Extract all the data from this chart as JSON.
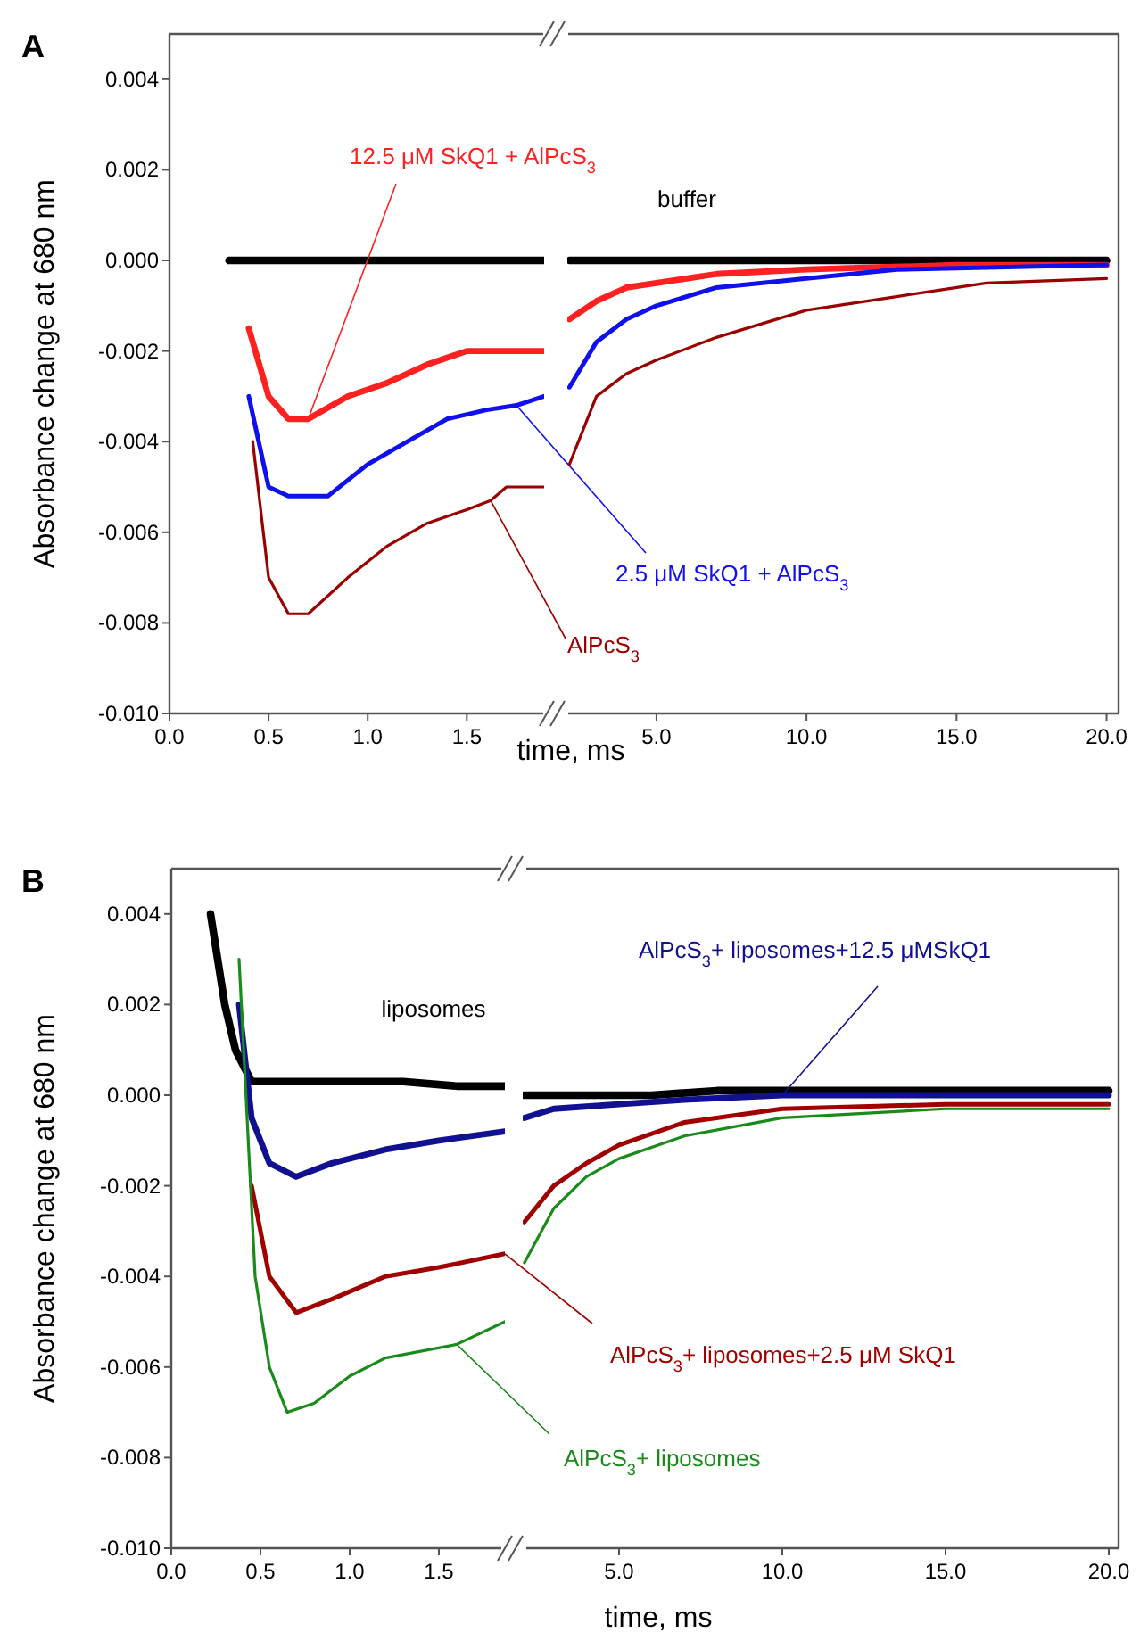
{
  "chart_data": [
    {
      "type": "line",
      "title": "A",
      "ylabel": "Absorbance change at 680 nm",
      "xlim": [
        0,
        1.89
      ],
      "ylim": [
        -0.01,
        0.005
      ],
      "xticks": [
        {
          "value": 0,
          "label": "0.0"
        },
        {
          "value": 0.5,
          "label": "0.5"
        },
        {
          "value": 1,
          "label": "1.0"
        },
        {
          "value": 1.5,
          "label": "1.5"
        }
      ],
      "yticks": [
        {
          "value": -0.01,
          "label": "-0.010"
        },
        {
          "value": -0.008,
          "label": "-0.008"
        },
        {
          "value": -0.006,
          "label": "-0.006"
        },
        {
          "value": -0.004,
          "label": "-0.004"
        },
        {
          "value": -0.002,
          "label": "-0.002"
        },
        {
          "value": 0,
          "label": "0.000"
        },
        {
          "value": 0.002,
          "label": "0.002"
        },
        {
          "value": 0.004,
          "label": "0.004"
        }
      ],
      "series": [
        {
          "color": "#000000",
          "x": [
            0.3,
            0.5,
            0.7,
            0.9,
            1.1,
            1.3,
            1.5,
            1.7,
            1.89
          ],
          "values": [
            0,
            0,
            0,
            0,
            0,
            0,
            0,
            0,
            0
          ]
        },
        {
          "name": "12.5 μM SkQ1 + AlPcS$_{3}$",
          "color": "#ff2020",
          "x": [
            0.4,
            0.5,
            0.6,
            0.7,
            0.9,
            1.1,
            1.3,
            1.5,
            1.7,
            1.89
          ],
          "values": [
            -0.0015,
            -0.003,
            -0.0035,
            -0.0035,
            -0.003,
            -0.0027,
            -0.0023,
            -0.002,
            -0.002,
            -0.002
          ]
        },
        {
          "name": "2.5 μM SkQ1 + AlPcS$_{3}$",
          "color": "#1010ee",
          "x": [
            0.4,
            0.5,
            0.6,
            0.8,
            1.0,
            1.2,
            1.4,
            1.6,
            1.75,
            1.89
          ],
          "values": [
            -0.003,
            -0.005,
            -0.0052,
            -0.0052,
            -0.0045,
            -0.004,
            -0.0035,
            -0.0033,
            -0.0032,
            -0.003
          ]
        },
        {
          "name": "AlPcS$_{3}$",
          "color": "#990000",
          "x": [
            0.42,
            0.5,
            0.6,
            0.7,
            0.9,
            1.1,
            1.3,
            1.5,
            1.62,
            1.7,
            1.89
          ],
          "values": [
            -0.004,
            -0.007,
            -0.0078,
            -0.0078,
            -0.007,
            -0.0063,
            -0.0058,
            -0.0055,
            -0.0053,
            -0.005,
            -0.005
          ]
        }
      ]
    },
    {
      "type": "line",
      "xlabel": "time, ms",
      "xlim": [
        2.03,
        20.4
      ],
      "ylim": [
        -0.01,
        0.005
      ],
      "xticks": [
        {
          "value": 5,
          "label": "5.0"
        },
        {
          "value": 10,
          "label": "10.0"
        },
        {
          "value": 15,
          "label": "15.0"
        },
        {
          "value": 20,
          "label": "20.0"
        }
      ],
      "tick_labels": "x",
      "series": [
        {
          "name": "buffer",
          "color": "#000000",
          "x": [
            2.1,
            4,
            6,
            8,
            10,
            12,
            14,
            16,
            18,
            20
          ],
          "values": [
            0,
            0,
            0,
            0,
            0,
            0,
            0,
            0,
            0,
            0
          ]
        },
        {
          "color": "#ff2020",
          "x": [
            2.1,
            3,
            4,
            5,
            7,
            10,
            15,
            20
          ],
          "values": [
            -0.0013,
            -0.0009,
            -0.0006,
            -0.0005,
            -0.0003,
            -0.0002,
            -0.0001,
            -0.0001
          ]
        },
        {
          "color": "#1010ee",
          "x": [
            2.1,
            3,
            4,
            5,
            7,
            10,
            13,
            20
          ],
          "values": [
            -0.0028,
            -0.0018,
            -0.0013,
            -0.001,
            -0.0006,
            -0.0004,
            -0.0002,
            -0.0001
          ]
        },
        {
          "color": "#990000",
          "x": [
            2.1,
            3,
            4,
            5,
            7,
            10,
            13,
            16,
            20
          ],
          "values": [
            -0.0045,
            -0.003,
            -0.0025,
            -0.0022,
            -0.0017,
            -0.0011,
            -0.0008,
            -0.0005,
            -0.0004
          ]
        }
      ]
    },
    {
      "type": "line",
      "title": "B",
      "ylabel": "Absorbance change at 680 nm",
      "xlim": [
        0,
        1.87
      ],
      "ylim": [
        -0.01,
        0.005
      ],
      "xticks": [
        {
          "value": 0,
          "label": "0.0"
        },
        {
          "value": 0.5,
          "label": "0.5"
        },
        {
          "value": 1,
          "label": "1.0"
        },
        {
          "value": 1.5,
          "label": "1.5"
        }
      ],
      "yticks": [
        {
          "value": -0.01,
          "label": "-0.010"
        },
        {
          "value": -0.008,
          "label": "-0.008"
        },
        {
          "value": -0.006,
          "label": "-0.006"
        },
        {
          "value": -0.004,
          "label": "-0.004"
        },
        {
          "value": -0.002,
          "label": "-0.002"
        },
        {
          "value": 0,
          "label": "0.000"
        },
        {
          "value": 0.002,
          "label": "0.002"
        },
        {
          "value": 0.004,
          "label": "0.004"
        }
      ],
      "series": [
        {
          "name": "liposomes",
          "color": "#000000",
          "x": [
            0.22,
            0.3,
            0.36,
            0.45,
            0.7,
            1.0,
            1.3,
            1.6,
            1.87
          ],
          "values": [
            0.004,
            0.002,
            0.001,
            0.0003,
            0.0003,
            0.0003,
            0.0003,
            0.0002,
            0.0002
          ]
        },
        {
          "color": "#101090",
          "x": [
            0.38,
            0.45,
            0.55,
            0.7,
            0.9,
            1.2,
            1.5,
            1.87
          ],
          "values": [
            0.002,
            -0.0005,
            -0.0015,
            -0.0018,
            -0.0015,
            -0.0012,
            -0.001,
            -0.0008
          ]
        },
        {
          "name": "AlPcS$_{3}$+ liposomes+2.5 μM SkQ1",
          "color": "#a00000",
          "x": [
            0.45,
            0.55,
            0.7,
            0.9,
            1.2,
            1.5,
            1.87
          ],
          "values": [
            -0.002,
            -0.004,
            -0.0048,
            -0.0045,
            -0.004,
            -0.0038,
            -0.0035
          ]
        },
        {
          "name": "AlPcS$_{3}$+ liposomes",
          "color": "#1a8a1a",
          "x": [
            0.38,
            0.47,
            0.55,
            0.65,
            0.8,
            1.0,
            1.2,
            1.6,
            1.87
          ],
          "values": [
            0.003,
            -0.004,
            -0.006,
            -0.007,
            -0.0068,
            -0.0062,
            -0.0058,
            -0.0055,
            -0.005
          ]
        }
      ]
    },
    {
      "type": "line",
      "xlabel": "time, ms",
      "xlim": [
        2.05,
        20.3
      ],
      "ylim": [
        -0.01,
        0.005
      ],
      "xticks": [
        {
          "value": 5,
          "label": "5.0"
        },
        {
          "value": 10,
          "label": "10.0"
        },
        {
          "value": 15,
          "label": "15.0"
        },
        {
          "value": 20,
          "label": "20.0"
        }
      ],
      "tick_labels": "x",
      "series": [
        {
          "color": "#000000",
          "x": [
            2.1,
            4,
            6,
            8,
            10,
            15,
            20
          ],
          "values": [
            0,
            0,
            0,
            0.0001,
            0.0001,
            0.0001,
            0.0001
          ]
        },
        {
          "name": "AlPcS$_{3}$+ liposomes+12.5 μMSkQ1",
          "color": "#101090",
          "x": [
            2.1,
            3,
            5,
            7,
            10,
            15,
            20
          ],
          "values": [
            -0.0005,
            -0.0003,
            -0.0002,
            -0.0001,
            0,
            0,
            0
          ]
        },
        {
          "color": "#a00000",
          "x": [
            2.1,
            3,
            4,
            5,
            7,
            10,
            15,
            20
          ],
          "values": [
            -0.0028,
            -0.002,
            -0.0015,
            -0.0011,
            -0.0006,
            -0.0003,
            -0.0002,
            -0.0002
          ]
        },
        {
          "color": "#1a8a1a",
          "x": [
            2.1,
            3,
            4,
            5,
            7,
            10,
            15,
            20
          ],
          "values": [
            -0.0037,
            -0.0025,
            -0.0018,
            -0.0014,
            -0.0009,
            -0.0005,
            -0.0003,
            -0.0003
          ]
        }
      ]
    }
  ]
}
